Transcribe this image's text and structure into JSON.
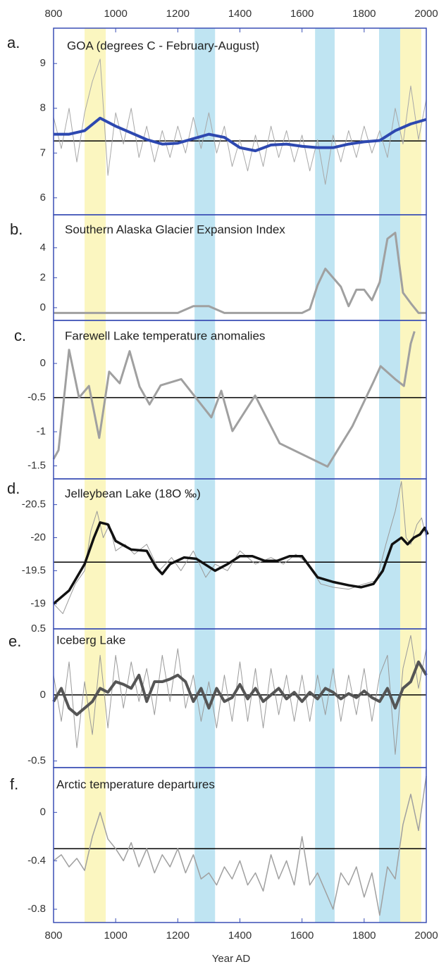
{
  "x_axis": {
    "label": "Year AD",
    "xlim": [
      800,
      2000
    ],
    "xticks": [
      800,
      1000,
      1200,
      1400,
      1600,
      1800,
      2000
    ]
  },
  "shading": [
    {
      "from": 900,
      "to": 968,
      "color": "#fbf6c0"
    },
    {
      "from": 1254,
      "to": 1320,
      "color": "#bfe4f2"
    },
    {
      "from": 1642,
      "to": 1705,
      "color": "#bfe4f2"
    },
    {
      "from": 1848,
      "to": 1916,
      "color": "#bfe4f2"
    },
    {
      "from": 1916,
      "to": 1984,
      "color": "#fbf6c0"
    }
  ],
  "chart_data": [
    {
      "type": "line",
      "label": "a.",
      "title": "GOA (degrees C - February-August)",
      "ylim": [
        5.62,
        9.79
      ],
      "yticks": [
        6,
        7,
        8,
        9
      ],
      "hline": 7.27,
      "series": [
        {
          "color": "#a8a8a8",
          "width": 1,
          "x": [
            800,
            825,
            850,
            875,
            900,
            925,
            950,
            975,
            1000,
            1025,
            1050,
            1075,
            1100,
            1125,
            1150,
            1175,
            1200,
            1225,
            1250,
            1275,
            1300,
            1325,
            1350,
            1375,
            1400,
            1425,
            1450,
            1475,
            1500,
            1525,
            1550,
            1575,
            1600,
            1625,
            1650,
            1675,
            1700,
            1725,
            1750,
            1775,
            1800,
            1825,
            1850,
            1875,
            1900,
            1925,
            1950,
            1975,
            2000
          ],
          "values": [
            7.8,
            7.1,
            8.0,
            6.8,
            7.9,
            8.6,
            9.1,
            6.5,
            7.9,
            7.2,
            8.0,
            6.9,
            7.6,
            6.8,
            7.5,
            6.9,
            7.6,
            7.0,
            7.8,
            7.1,
            7.9,
            7.0,
            7.6,
            6.7,
            7.3,
            6.6,
            7.4,
            6.7,
            7.6,
            6.9,
            7.5,
            6.8,
            7.4,
            6.6,
            7.3,
            6.3,
            7.4,
            6.8,
            7.5,
            6.9,
            7.6,
            7.0,
            7.5,
            6.9,
            8.0,
            7.2,
            8.5,
            7.3,
            8.2
          ]
        },
        {
          "color": "#2d48b0",
          "width": 4,
          "x": [
            800,
            850,
            900,
            950,
            1000,
            1050,
            1100,
            1150,
            1200,
            1250,
            1300,
            1350,
            1400,
            1450,
            1500,
            1550,
            1600,
            1650,
            1700,
            1750,
            1800,
            1850,
            1900,
            1950,
            2000
          ],
          "values": [
            7.42,
            7.42,
            7.5,
            7.78,
            7.6,
            7.45,
            7.3,
            7.2,
            7.22,
            7.32,
            7.42,
            7.35,
            7.12,
            7.05,
            7.18,
            7.2,
            7.15,
            7.12,
            7.12,
            7.2,
            7.25,
            7.28,
            7.5,
            7.65,
            7.75
          ]
        }
      ]
    },
    {
      "type": "line",
      "label": "b.",
      "title": "Southern Alaska Glacier Expansion Index",
      "ylim": [
        -0.85,
        6.2
      ],
      "yticks": [
        0,
        2,
        4
      ],
      "series": [
        {
          "color": "#a0a0a0",
          "width": 3,
          "x": [
            800,
            1200,
            1250,
            1300,
            1350,
            1600,
            1625,
            1650,
            1675,
            1700,
            1725,
            1750,
            1775,
            1800,
            1825,
            1850,
            1875,
            1900,
            1925,
            1950,
            1975,
            2000
          ],
          "values": [
            -0.35,
            -0.35,
            0.1,
            0.1,
            -0.35,
            -0.35,
            -0.1,
            1.5,
            2.6,
            2.0,
            1.4,
            0.1,
            1.2,
            1.2,
            0.5,
            1.7,
            4.6,
            5.0,
            1.0,
            0.3,
            -0.35,
            -0.35
          ]
        }
      ]
    },
    {
      "type": "line",
      "label": "c.",
      "title": "Farewell Lake temperature anomalies",
      "ylim": [
        -1.69,
        0.63
      ],
      "yticks": [
        0,
        -0.5,
        -1,
        -1.5
      ],
      "hline": -0.5,
      "series": [
        {
          "color": "#a0a0a0",
          "width": 3,
          "x": [
            800,
            816,
            850,
            882,
            914,
            947,
            979,
            1013,
            1045,
            1077,
            1109,
            1145,
            1211,
            1308,
            1340,
            1376,
            1449,
            1528,
            1682,
            1762,
            1830,
            1853,
            1900,
            1928,
            1950,
            1962
          ],
          "values": [
            -1.4,
            -1.27,
            0.2,
            -0.5,
            -0.33,
            -1.09,
            -0.12,
            -0.29,
            0.18,
            -0.34,
            -0.6,
            -0.32,
            -0.23,
            -0.79,
            -0.4,
            -0.99,
            -0.47,
            -1.17,
            -1.51,
            -0.92,
            -0.27,
            -0.04,
            -0.23,
            -0.33,
            0.29,
            0.47
          ]
        }
      ]
    },
    {
      "type": "line",
      "label": "d.",
      "title": "Jelleybean Lake (18O ‰)",
      "ylim": [
        -18.62,
        -20.89
      ],
      "yticks": [
        -19,
        -19.5,
        -20,
        -20.5
      ],
      "hline": -19.63,
      "series": [
        {
          "color": "#999999",
          "width": 1,
          "x": [
            800,
            830,
            870,
            900,
            920,
            940,
            960,
            980,
            1000,
            1030,
            1060,
            1100,
            1140,
            1180,
            1210,
            1250,
            1290,
            1320,
            1360,
            1400,
            1450,
            1500,
            1540,
            1580,
            1620,
            1660,
            1700,
            1750,
            1800,
            1840,
            1870,
            1900,
            1920,
            1935,
            1950,
            1970,
            1985,
            2000
          ],
          "values": [
            -19.0,
            -18.85,
            -19.3,
            -19.5,
            -20.1,
            -20.4,
            -20.0,
            -20.2,
            -19.8,
            -19.9,
            -19.75,
            -19.9,
            -19.5,
            -19.7,
            -19.5,
            -19.8,
            -19.4,
            -19.6,
            -19.5,
            -19.8,
            -19.6,
            -19.7,
            -19.6,
            -19.75,
            -19.6,
            -19.3,
            -19.25,
            -19.22,
            -19.3,
            -19.35,
            -19.9,
            -20.4,
            -20.85,
            -20.0,
            -19.9,
            -20.2,
            -20.3,
            -20.0
          ]
        },
        {
          "color": "#111111",
          "width": 3.5,
          "x": [
            800,
            850,
            900,
            930,
            950,
            975,
            1000,
            1050,
            1100,
            1130,
            1150,
            1175,
            1220,
            1260,
            1320,
            1360,
            1400,
            1440,
            1480,
            1520,
            1560,
            1600,
            1650,
            1700,
            1750,
            1790,
            1830,
            1860,
            1890,
            1920,
            1940,
            1960,
            1980,
            1995,
            2005
          ],
          "values": [
            -19.0,
            -19.2,
            -19.6,
            -20.0,
            -20.23,
            -20.2,
            -19.95,
            -19.82,
            -19.8,
            -19.55,
            -19.45,
            -19.6,
            -19.7,
            -19.68,
            -19.5,
            -19.6,
            -19.72,
            -19.72,
            -19.65,
            -19.65,
            -19.72,
            -19.72,
            -19.4,
            -19.33,
            -19.28,
            -19.25,
            -19.3,
            -19.5,
            -19.9,
            -20.0,
            -19.9,
            -20.0,
            -20.05,
            -20.15,
            -20.05
          ]
        }
      ]
    },
    {
      "type": "line",
      "label": "e.",
      "title": "Iceberg Lake",
      "ylim": [
        -0.55,
        0.5
      ],
      "yticks": [
        0.5,
        0,
        -0.5
      ],
      "hline": 0,
      "series": [
        {
          "color": "#9a9a9a",
          "width": 1,
          "x": [
            800,
            825,
            850,
            875,
            900,
            925,
            950,
            975,
            1000,
            1025,
            1050,
            1075,
            1100,
            1125,
            1150,
            1175,
            1200,
            1225,
            1250,
            1275,
            1300,
            1325,
            1350,
            1375,
            1400,
            1425,
            1450,
            1475,
            1500,
            1525,
            1550,
            1575,
            1600,
            1625,
            1650,
            1675,
            1700,
            1725,
            1750,
            1775,
            1800,
            1825,
            1850,
            1875,
            1900,
            1925,
            1950,
            1975,
            2000
          ],
          "values": [
            0.15,
            -0.2,
            0.25,
            -0.4,
            0.1,
            -0.3,
            0.3,
            -0.25,
            0.3,
            -0.1,
            0.25,
            -0.05,
            0.2,
            -0.15,
            0.3,
            -0.05,
            0.35,
            -0.1,
            0.15,
            -0.2,
            0.1,
            -0.25,
            0.15,
            -0.2,
            0.25,
            -0.2,
            0.2,
            -0.25,
            0.2,
            -0.15,
            0.15,
            -0.2,
            0.15,
            -0.2,
            0.15,
            -0.15,
            0.2,
            -0.2,
            0.15,
            -0.15,
            0.2,
            -0.2,
            0.15,
            0.3,
            -0.45,
            0.2,
            0.45,
            0.05,
            0.35
          ]
        },
        {
          "color": "#555555",
          "width": 4,
          "x": [
            800,
            825,
            850,
            875,
            900,
            925,
            950,
            975,
            1000,
            1025,
            1050,
            1075,
            1100,
            1125,
            1150,
            1175,
            1200,
            1225,
            1250,
            1275,
            1300,
            1325,
            1350,
            1375,
            1400,
            1425,
            1450,
            1475,
            1500,
            1525,
            1550,
            1575,
            1600,
            1625,
            1650,
            1675,
            1700,
            1725,
            1750,
            1775,
            1800,
            1825,
            1850,
            1875,
            1900,
            1925,
            1950,
            1975,
            2000
          ],
          "values": [
            -0.05,
            0.05,
            -0.1,
            -0.15,
            -0.1,
            -0.05,
            0.05,
            0.02,
            0.1,
            0.08,
            0.05,
            0.15,
            -0.05,
            0.1,
            0.1,
            0.12,
            0.15,
            0.1,
            -0.05,
            0.05,
            -0.1,
            0.05,
            -0.05,
            -0.02,
            0.08,
            -0.03,
            0.05,
            -0.05,
            0.0,
            0.05,
            -0.03,
            0.02,
            -0.05,
            0.02,
            -0.03,
            0.05,
            0.02,
            -0.03,
            0.01,
            -0.02,
            0.03,
            -0.02,
            -0.05,
            0.05,
            -0.1,
            0.05,
            0.1,
            0.25,
            0.15
          ]
        }
      ]
    },
    {
      "type": "line",
      "label": "f.",
      "title": "Arctic temperature departures",
      "ylim": [
        -0.91,
        0.37
      ],
      "yticks": [
        0,
        -0.4,
        -0.8
      ],
      "hline": -0.3,
      "series": [
        {
          "color": "#a0a0a0",
          "width": 1.5,
          "x": [
            800,
            825,
            850,
            875,
            900,
            925,
            950,
            975,
            1000,
            1025,
            1050,
            1075,
            1100,
            1125,
            1150,
            1175,
            1200,
            1225,
            1250,
            1275,
            1300,
            1325,
            1350,
            1375,
            1400,
            1425,
            1450,
            1475,
            1500,
            1525,
            1550,
            1575,
            1600,
            1625,
            1650,
            1675,
            1700,
            1725,
            1750,
            1775,
            1800,
            1825,
            1850,
            1875,
            1900,
            1925,
            1950,
            1975,
            2000
          ],
          "values": [
            -0.4,
            -0.35,
            -0.45,
            -0.38,
            -0.48,
            -0.2,
            0.0,
            -0.22,
            -0.3,
            -0.4,
            -0.25,
            -0.45,
            -0.3,
            -0.5,
            -0.35,
            -0.45,
            -0.3,
            -0.5,
            -0.35,
            -0.55,
            -0.5,
            -0.6,
            -0.45,
            -0.55,
            -0.4,
            -0.6,
            -0.5,
            -0.65,
            -0.35,
            -0.55,
            -0.4,
            -0.6,
            -0.2,
            -0.6,
            -0.5,
            -0.65,
            -0.8,
            -0.5,
            -0.6,
            -0.45,
            -0.7,
            -0.5,
            -0.85,
            -0.45,
            -0.55,
            -0.1,
            0.15,
            -0.15,
            0.3
          ]
        }
      ]
    }
  ]
}
